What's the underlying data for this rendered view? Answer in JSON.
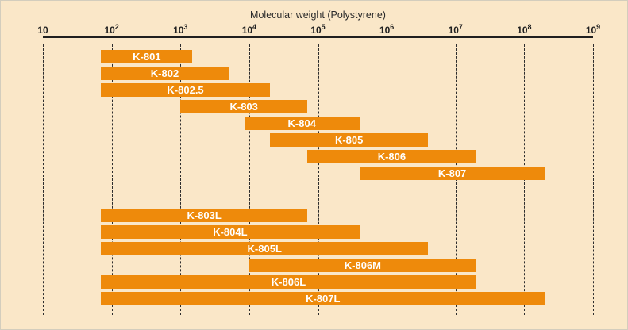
{
  "chart_data": {
    "type": "bar",
    "subtype": "horizontal-range-bars",
    "title": "Molecular weight (Polystyrene)",
    "xlabel": "Molecular weight (Polystyrene)",
    "ylabel": "",
    "x_scale": "log10",
    "x_min": 10,
    "x_max": 1000000000,
    "grid": "dashed vertical line at every decade",
    "legend": "none",
    "x_ticks": [
      {
        "value": 10,
        "display_base": "10",
        "display_exp": ""
      },
      {
        "value": 100,
        "display_base": "10",
        "display_exp": "2"
      },
      {
        "value": 1000,
        "display_base": "10",
        "display_exp": "3"
      },
      {
        "value": 10000,
        "display_base": "10",
        "display_exp": "4"
      },
      {
        "value": 100000,
        "display_base": "10",
        "display_exp": "5"
      },
      {
        "value": 1000000,
        "display_base": "10",
        "display_exp": "6"
      },
      {
        "value": 10000000,
        "display_base": "10",
        "display_exp": "7"
      },
      {
        "value": 100000000,
        "display_base": "10",
        "display_exp": "8"
      },
      {
        "value": 1000000000,
        "display_base": "10",
        "display_exp": "9"
      }
    ],
    "series": [
      {
        "label": "K-801",
        "group": 0,
        "mw_min": 70,
        "mw_max": 1500
      },
      {
        "label": "K-802",
        "group": 0,
        "mw_min": 70,
        "mw_max": 5000
      },
      {
        "label": "K-802.5",
        "group": 0,
        "mw_min": 70,
        "mw_max": 20000
      },
      {
        "label": "K-803",
        "group": 0,
        "mw_min": 1000,
        "mw_max": 70000
      },
      {
        "label": "K-804",
        "group": 0,
        "mw_min": 8500,
        "mw_max": 400000
      },
      {
        "label": "K-805",
        "group": 0,
        "mw_min": 20000,
        "mw_max": 4000000
      },
      {
        "label": "K-806",
        "group": 0,
        "mw_min": 70000,
        "mw_max": 20000000
      },
      {
        "label": "K-807",
        "group": 0,
        "mw_min": 400000,
        "mw_max": 200000000
      },
      {
        "label": "K-803L",
        "group": 1,
        "mw_min": 70,
        "mw_max": 70000
      },
      {
        "label": "K-804L",
        "group": 1,
        "mw_min": 70,
        "mw_max": 400000
      },
      {
        "label": "K-805L",
        "group": 1,
        "mw_min": 70,
        "mw_max": 4000000
      },
      {
        "label": "K-806M",
        "group": 1,
        "mw_min": 10000,
        "mw_max": 20000000
      },
      {
        "label": "K-806L",
        "group": 1,
        "mw_min": 70,
        "mw_max": 20000000
      },
      {
        "label": "K-807L",
        "group": 1,
        "mw_min": 70,
        "mw_max": 200000000
      }
    ],
    "colors": {
      "background": "#fae7c8",
      "bar": "#ee8a0b",
      "bar_label": "#ffffff",
      "axis": "#1f1f1f",
      "gridline": "#2d2d2d"
    }
  }
}
